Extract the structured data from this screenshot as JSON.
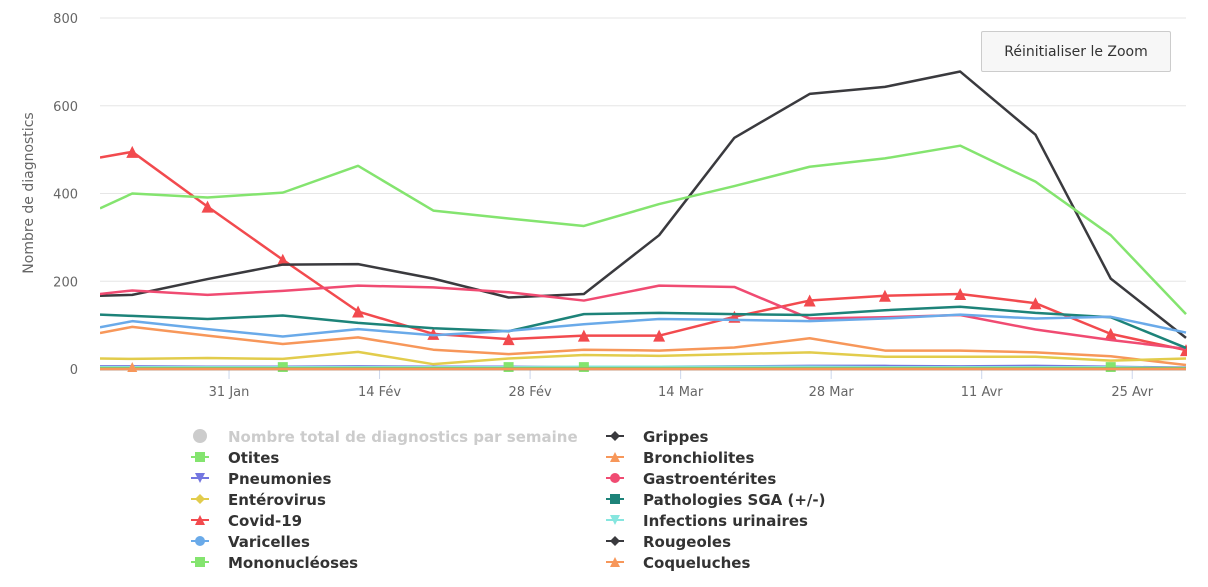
{
  "chart_data": {
    "type": "line",
    "title": "",
    "ylabel": "Nombre de diagnostics",
    "xlabel": "",
    "ylim": [
      0,
      800
    ],
    "yticks": [
      0,
      200,
      400,
      600,
      800
    ],
    "xlim_day_of_year": [
      19,
      120
    ],
    "xticks": [
      {
        "day": 31,
        "label": "31 Jan"
      },
      {
        "day": 45,
        "label": "14 Fév"
      },
      {
        "day": 59,
        "label": "28 Fév"
      },
      {
        "day": 73,
        "label": "14 Mar"
      },
      {
        "day": 87,
        "label": "28 Mar"
      },
      {
        "day": 101,
        "label": "11 Avr"
      },
      {
        "day": 115,
        "label": "25 Avr"
      }
    ],
    "x_days": [
      19,
      22,
      29,
      36,
      43,
      50,
      57,
      64,
      71,
      78,
      85,
      92,
      99,
      106,
      113,
      120
    ],
    "grid": true,
    "legend_placement": "bottom",
    "series": [
      {
        "name": "Nombre total de diagnostics par semaine",
        "color": "#cccccc",
        "symbol": "circle",
        "visible": false,
        "values": []
      },
      {
        "name": "Grippes",
        "color": "#3a3a3e",
        "symbol": "diamond",
        "visible": true,
        "values": [
          167,
          169,
          205,
          238,
          239,
          206,
          163,
          171,
          305,
          527,
          627,
          643,
          678,
          534,
          206,
          71
        ]
      },
      {
        "name": "Otites",
        "color": "#84e46f",
        "symbol": "square",
        "visible": true,
        "values": [
          366,
          400,
          391,
          402,
          463,
          361,
          343,
          326,
          376,
          417,
          461,
          480,
          509,
          427,
          305,
          125
        ]
      },
      {
        "name": "Bronchiolites",
        "color": "#f7975a",
        "symbol": "triangle",
        "visible": true,
        "values": [
          82,
          96,
          76,
          57,
          72,
          44,
          34,
          44,
          42,
          49,
          70,
          42,
          42,
          38,
          29,
          9
        ]
      },
      {
        "name": "Pneumonies",
        "color": "#7376e0",
        "symbol": "triangle-down",
        "visible": true,
        "values": [
          6,
          6,
          5,
          5,
          6,
          5,
          5,
          4,
          5,
          6,
          7,
          7,
          6,
          7,
          5,
          3
        ]
      },
      {
        "name": "Gastroentérites",
        "color": "#f04b72",
        "symbol": "circle",
        "visible": true,
        "values": [
          171,
          179,
          169,
          178,
          190,
          186,
          175,
          156,
          190,
          187,
          115,
          118,
          123,
          90,
          66,
          46
        ]
      },
      {
        "name": "Entérovirus",
        "color": "#e2cc4c",
        "symbol": "diamond",
        "visible": true,
        "values": [
          24,
          23,
          25,
          23,
          39,
          11,
          24,
          32,
          30,
          34,
          38,
          28,
          28,
          28,
          19,
          24
        ]
      },
      {
        "name": "Pathologies SGA (+/-)",
        "color": "#1d8379",
        "symbol": "square",
        "visible": true,
        "values": [
          124,
          121,
          114,
          122,
          105,
          93,
          86,
          125,
          128,
          125,
          123,
          134,
          142,
          128,
          118,
          48
        ]
      },
      {
        "name": "Covid-19",
        "color": "#f24a4e",
        "symbol": "triangle",
        "visible": true,
        "values": [
          482,
          495,
          370,
          249,
          131,
          80,
          68,
          76,
          76,
          119,
          156,
          167,
          171,
          150,
          80,
          43
        ]
      },
      {
        "name": "Infections urinaires",
        "color": "#86e6df",
        "symbol": "triangle-down",
        "visible": true,
        "values": [
          4,
          4,
          4,
          4,
          4,
          4,
          4,
          5,
          5,
          5,
          5,
          4,
          4,
          4,
          4,
          2
        ]
      },
      {
        "name": "Varicelles",
        "color": "#6aaae9",
        "symbol": "circle",
        "visible": true,
        "values": [
          95,
          109,
          91,
          74,
          91,
          77,
          87,
          102,
          114,
          112,
          109,
          115,
          124,
          115,
          119,
          83
        ]
      },
      {
        "name": "Rougeoles",
        "color": "#3a3a3e",
        "symbol": "diamond",
        "visible": true,
        "values": [
          0,
          0,
          0,
          0,
          0,
          0,
          0,
          0,
          0,
          0,
          0,
          0,
          0,
          0,
          0,
          0
        ]
      },
      {
        "name": "Mononucléoses",
        "color": "#84e46f",
        "symbol": "square",
        "visible": true,
        "values": [
          2,
          2,
          2,
          2,
          2,
          2,
          2,
          2,
          2,
          2,
          2,
          2,
          2,
          2,
          2,
          2
        ]
      },
      {
        "name": "Coqueluches",
        "color": "#f7975a",
        "symbol": "triangle",
        "visible": true,
        "values": [
          0,
          0,
          0,
          0,
          0,
          0,
          0,
          0,
          0,
          0,
          0,
          0,
          0,
          0,
          0,
          0
        ]
      }
    ]
  },
  "reset_zoom_label": "Réinitialiser le Zoom"
}
